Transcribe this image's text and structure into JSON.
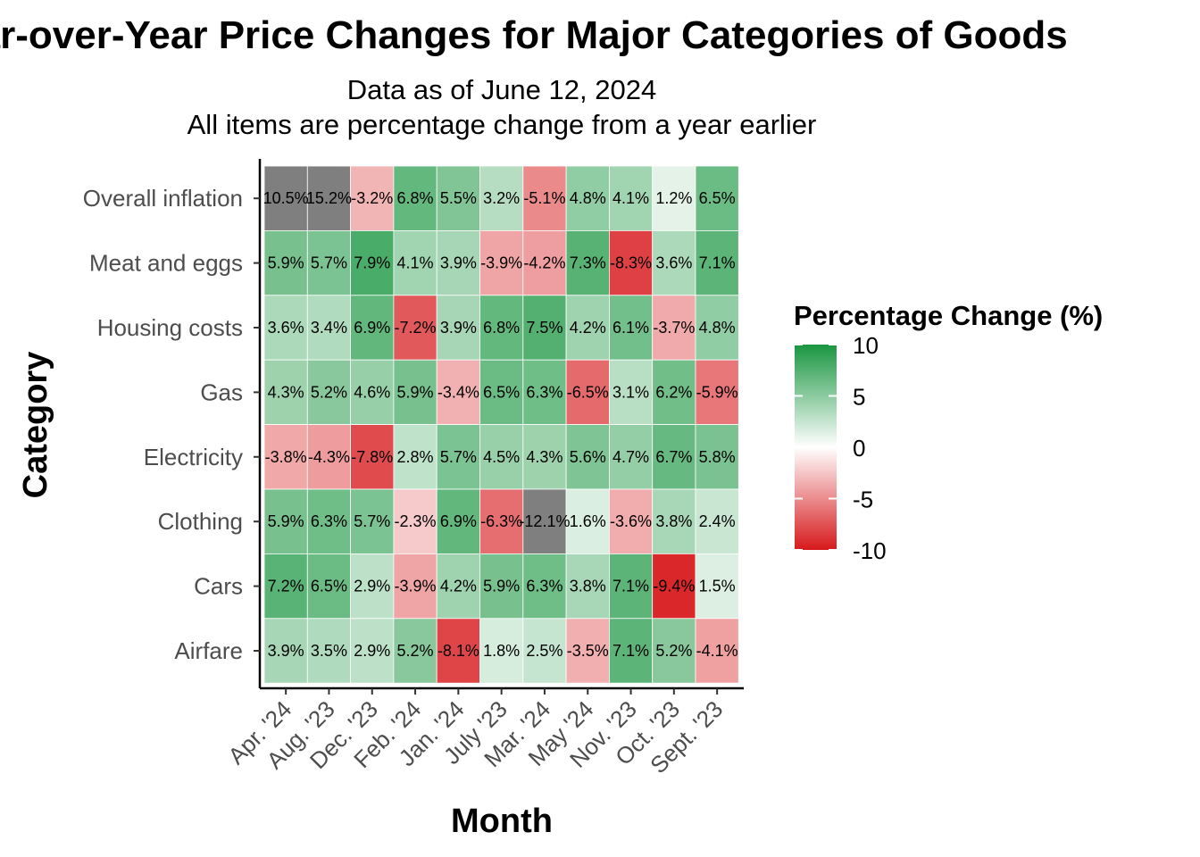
{
  "chart_data": {
    "type": "heatmap",
    "title": "Year-over-Year Price Changes for Major Categories of Goods",
    "subtitle_lines": [
      "Data as of June 12, 2024",
      "All items are percentage change from a year earlier"
    ],
    "xlabel": "Month",
    "ylabel": "Category",
    "x_categories": [
      "Apr. '24",
      "Aug. '23",
      "Dec. '23",
      "Feb. '24",
      "Jan. '24",
      "July '23",
      "Mar. '24",
      "May '24",
      "Nov. '23",
      "Oct. '23",
      "Sept. '23"
    ],
    "y_categories": [
      "Overall inflation",
      "Meat and eggs",
      "Housing costs",
      "Gas",
      "Electricity",
      "Clothing",
      "Cars",
      "Airfare"
    ],
    "values": [
      [
        10.5,
        15.2,
        -3.2,
        6.8,
        5.5,
        3.2,
        -5.1,
        4.8,
        4.1,
        1.2,
        6.5
      ],
      [
        5.9,
        5.7,
        7.9,
        4.1,
        3.9,
        -3.9,
        -4.2,
        7.3,
        -8.3,
        3.6,
        7.1
      ],
      [
        3.6,
        3.4,
        6.9,
        -7.2,
        3.9,
        6.8,
        7.5,
        4.2,
        6.1,
        -3.7,
        4.8
      ],
      [
        4.3,
        5.2,
        4.6,
        5.9,
        -3.4,
        6.5,
        6.3,
        -6.5,
        3.1,
        6.2,
        -5.9
      ],
      [
        -3.8,
        -4.3,
        -7.8,
        2.8,
        5.7,
        4.5,
        4.3,
        5.6,
        4.7,
        6.7,
        5.8
      ],
      [
        5.9,
        6.3,
        5.7,
        -2.3,
        6.9,
        -6.3,
        -12.1,
        1.6,
        -3.6,
        3.8,
        2.4
      ],
      [
        7.2,
        6.5,
        2.9,
        -3.9,
        4.2,
        5.9,
        6.3,
        3.8,
        7.1,
        -9.4,
        1.5
      ],
      [
        3.9,
        3.5,
        2.9,
        5.2,
        -8.1,
        1.8,
        2.5,
        -3.5,
        7.1,
        5.2,
        -4.1
      ]
    ],
    "value_suffix": "%",
    "color_scale": {
      "limits": [
        -10,
        10
      ],
      "low_color": "#d7191c",
      "mid_color": "#ffffff",
      "high_color": "#1a9641",
      "out_of_range_color": "#7f7f7f"
    },
    "legend": {
      "title": "Percentage Change (%)",
      "position": "right",
      "breaks": [
        10,
        5,
        0,
        -5,
        -10
      ]
    },
    "grid": false
  }
}
